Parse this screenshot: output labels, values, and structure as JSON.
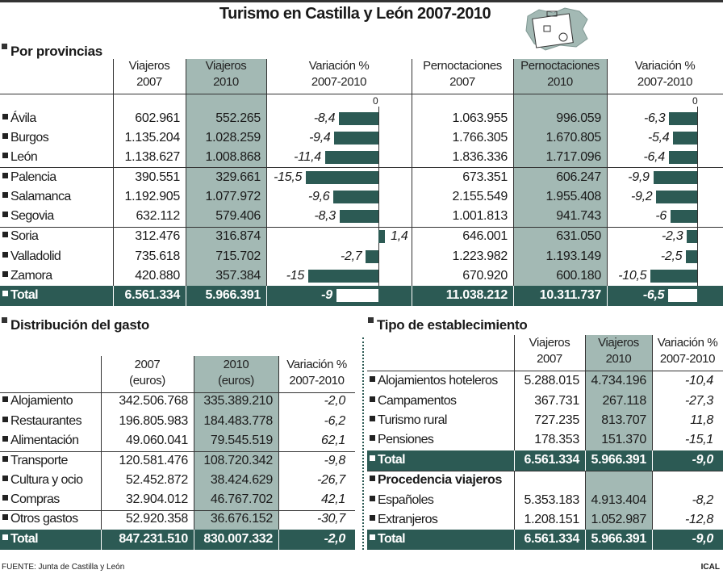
{
  "title": "Turismo en Castilla y León 2007-2010",
  "colors": {
    "highlight": "#a3b9b4",
    "dark": "#2c5a54"
  },
  "provincias": {
    "section": "Por provincias",
    "headers": [
      "Viajeros\n2007",
      "Viajeros\n2010",
      "Variación %\n2007-2010",
      "Pernoctaciones\n2007",
      "Pernoctaciones\n2010",
      "Variación %\n2007-2010"
    ],
    "zero_label": "0",
    "rows": [
      {
        "name": "Ávila",
        "v2007": "602.961",
        "v2010": "552.265",
        "vvar": "-8,4",
        "vvar_n": -8.4,
        "p2007": "1.063.955",
        "p2010": "996.059",
        "pvar": "-6,3",
        "pvar_n": -6.3
      },
      {
        "name": "Burgos",
        "v2007": "1.135.204",
        "v2010": "1.028.259",
        "vvar": "-9,4",
        "vvar_n": -9.4,
        "p2007": "1.766.305",
        "p2010": "1.670.805",
        "pvar": "-5,4",
        "pvar_n": -5.4
      },
      {
        "name": "León",
        "v2007": "1.138.627",
        "v2010": "1.008.868",
        "vvar": "-11,4",
        "vvar_n": -11.4,
        "p2007": "1.836.336",
        "p2010": "1.717.096",
        "pvar": "-6,4",
        "pvar_n": -6.4
      },
      {
        "name": "Palencia",
        "v2007": "390.551",
        "v2010": "329.661",
        "vvar": "-15,5",
        "vvar_n": -15.5,
        "p2007": "673.351",
        "p2010": "606.247",
        "pvar": "-9,9",
        "pvar_n": -9.9
      },
      {
        "name": "Salamanca",
        "v2007": "1.192.905",
        "v2010": "1.077.972",
        "vvar": "-9,6",
        "vvar_n": -9.6,
        "p2007": "2.155.549",
        "p2010": "1.955.408",
        "pvar": "-9,2",
        "pvar_n": -9.2
      },
      {
        "name": "Segovia",
        "v2007": "632.112",
        "v2010": "579.406",
        "vvar": "-8,3",
        "vvar_n": -8.3,
        "p2007": "1.001.813",
        "p2010": "941.743",
        "pvar": "-6",
        "pvar_n": -6
      },
      {
        "name": "Soria",
        "v2007": "312.476",
        "v2010": "316.874",
        "vvar": "1,4",
        "vvar_n": 1.4,
        "p2007": "646.001",
        "p2010": "631.050",
        "pvar": "-2,3",
        "pvar_n": -2.3
      },
      {
        "name": "Valladolid",
        "v2007": "735.618",
        "v2010": "715.702",
        "vvar": "-2,7",
        "vvar_n": -2.7,
        "p2007": "1.223.982",
        "p2010": "1.193.149",
        "pvar": "-2,5",
        "pvar_n": -2.5
      },
      {
        "name": "Zamora",
        "v2007": "420.880",
        "v2010": "357.384",
        "vvar": "-15",
        "vvar_n": -15,
        "p2007": "670.920",
        "p2010": "600.180",
        "pvar": "-10,5",
        "pvar_n": -10.5
      }
    ],
    "total": {
      "name": "Total",
      "v2007": "6.561.334",
      "v2010": "5.966.391",
      "vvar": "-9",
      "vvar_n": -9,
      "p2007": "11.038.212",
      "p2010": "10.311.737",
      "pvar": "-6,5",
      "pvar_n": -6.5
    }
  },
  "gasto": {
    "section": "Distribución del gasto",
    "headers": [
      "2007\n(euros)",
      "2010\n(euros)",
      "Variación %\n2007-2010"
    ],
    "rows": [
      {
        "name": "Alojamiento",
        "a": "342.506.768",
        "b": "335.389.210",
        "c": "-2,0"
      },
      {
        "name": "Restaurantes",
        "a": "196.805.983",
        "b": "184.483.778",
        "c": "-6,2"
      },
      {
        "name": "Alimentación",
        "a": "49.060.041",
        "b": "79.545.519",
        "c": "62,1"
      },
      {
        "name": "Transporte",
        "a": "120.581.476",
        "b": "108.720.342",
        "c": "-9,8"
      },
      {
        "name": "Cultura y ocio",
        "a": "52.452.872",
        "b": "38.424.629",
        "c": "-26,7"
      },
      {
        "name": "Compras",
        "a": "32.904.012",
        "b": "46.767.702",
        "c": "42,1"
      },
      {
        "name": "Otros gastos",
        "a": "52.920.358",
        "b": "36.676.152",
        "c": "-30,7"
      }
    ],
    "total": {
      "name": "Total",
      "a": "847.231.510",
      "b": "830.007.332",
      "c": "-2,0"
    }
  },
  "establecimiento": {
    "section": "Tipo de establecimiento",
    "headers": [
      "Viajeros\n2007",
      "Viajeros\n2010",
      "Variación %\n2007-2010"
    ],
    "rows": [
      {
        "name": "Alojamientos hoteleros",
        "a": "5.288.015",
        "b": "4.734.196",
        "c": "-10,4"
      },
      {
        "name": "Campamentos",
        "a": "367.731",
        "b": "267.118",
        "c": "-27,3"
      },
      {
        "name": "Turismo rural",
        "a": "727.235",
        "b": "813.707",
        "c": "11,8"
      },
      {
        "name": "Pensiones",
        "a": "178.353",
        "b": "151.370",
        "c": "-15,1"
      }
    ],
    "total": {
      "name": "Total",
      "a": "6.561.334",
      "b": "5.966.391",
      "c": "-9,0"
    },
    "sub_section": "Procedencia viajeros",
    "rows2": [
      {
        "name": "Españoles",
        "a": "5.353.183",
        "b": "4.913.404",
        "c": "-8,2"
      },
      {
        "name": "Extranjeros",
        "a": "1.208.151",
        "b": "1.052.987",
        "c": "-12,8"
      }
    ],
    "total2": {
      "name": "Total",
      "a": "6.561.334",
      "b": "5.966.391",
      "c": "-9,0"
    }
  },
  "footer": {
    "source": "FUENTE: Junta de Castilla y León",
    "credit": "ICAL"
  },
  "chart_data": [
    {
      "type": "bar",
      "title": "Viajeros Variación % 2007-2010",
      "categories": [
        "Ávila",
        "Burgos",
        "León",
        "Palencia",
        "Salamanca",
        "Segovia",
        "Soria",
        "Valladolid",
        "Zamora",
        "Total"
      ],
      "values": [
        -8.4,
        -9.4,
        -11.4,
        -15.5,
        -9.6,
        -8.3,
        1.4,
        -2.7,
        -15,
        -9
      ]
    },
    {
      "type": "bar",
      "title": "Pernoctaciones Variación % 2007-2010",
      "categories": [
        "Ávila",
        "Burgos",
        "León",
        "Palencia",
        "Salamanca",
        "Segovia",
        "Soria",
        "Valladolid",
        "Zamora",
        "Total"
      ],
      "values": [
        -6.3,
        -5.4,
        -6.4,
        -9.9,
        -9.2,
        -6,
        -2.3,
        -2.5,
        -10.5,
        -6.5
      ]
    }
  ]
}
